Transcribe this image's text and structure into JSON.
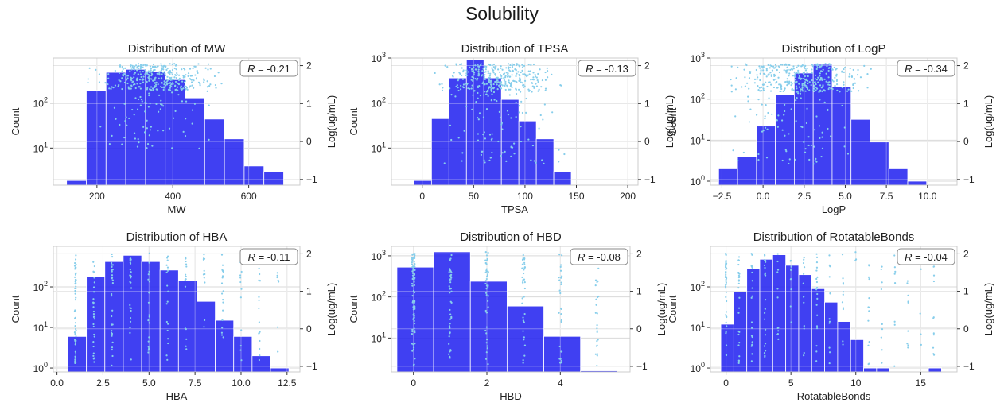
{
  "figure": {
    "title": "Solubility"
  },
  "colors": {
    "bar": "#2525f0",
    "scatter": "#87ceeb",
    "grid": "#d9d9d9",
    "frame": "#cccccc"
  },
  "chart_data": [
    {
      "type": "bar",
      "title": "Distribution of MW",
      "xlabel": "MW",
      "ylabel": "Count",
      "y2label": "Log(ug/mL)",
      "annotation": "R = -0.21",
      "xlim": [
        85,
        735
      ],
      "xticks": [
        200,
        400,
        600
      ],
      "xticklabels": [
        "200",
        "400",
        "600"
      ],
      "ylog": true,
      "ylim": [
        1.5,
        1000
      ],
      "yticks": [
        10,
        100
      ],
      "yticklabels": [
        "10^1",
        "10^2"
      ],
      "y2lim": [
        -1.15,
        2.2
      ],
      "y2ticks": [
        -1,
        0,
        1,
        2
      ],
      "y2ticklabels": [
        "−1",
        "0",
        "1",
        "2"
      ],
      "bins": [
        120,
        172,
        224,
        276,
        328,
        380,
        432,
        484,
        536,
        588,
        640,
        692
      ],
      "counts": [
        1.9,
        190,
        480,
        560,
        500,
        330,
        130,
        44,
        16,
        4,
        3
      ],
      "scatter_y": [
        1.35,
        2.05
      ],
      "scatter_x": [
        180,
        680
      ],
      "scatter_y_low": -0.2
    },
    {
      "type": "bar",
      "title": "Distribution of TPSA",
      "xlabel": "TPSA",
      "ylabel": "Count",
      "y2label": "Log(ug/mL)",
      "annotation": "R = -0.13",
      "xlim": [
        -30,
        210
      ],
      "xticks": [
        0,
        50,
        100,
        150,
        200
      ],
      "xticklabels": [
        "0",
        "50",
        "100",
        "150",
        "200"
      ],
      "ylog": true,
      "ylim": [
        1.5,
        1000
      ],
      "yticks": [
        10,
        100,
        1000
      ],
      "yticklabels": [
        "10^1",
        "10^2",
        "10^3"
      ],
      "y2lim": [
        -1.15,
        2.2
      ],
      "y2ticks": [
        -1,
        0,
        1,
        2
      ],
      "y2ticklabels": [
        "−1",
        "0",
        "1",
        "2"
      ],
      "bins": [
        -8,
        9,
        26,
        43,
        60,
        77,
        94,
        111,
        128,
        145,
        162,
        179
      ],
      "counts": [
        1.9,
        45,
        360,
        900,
        360,
        120,
        40,
        16,
        3,
        0,
        0
      ],
      "scatter_y": [
        1.3,
        2.05
      ],
      "scatter_x": [
        10,
        190
      ],
      "scatter_y_low": -0.6
    },
    {
      "type": "bar",
      "title": "Distribution of LogP",
      "xlabel": "LogP",
      "ylabel": "Count",
      "y2label": "Log(ug/mL)",
      "annotation": "R = -0.34",
      "xlim": [
        -3.2,
        11.8
      ],
      "xticks": [
        -2.5,
        0,
        2.5,
        5,
        7.5,
        10
      ],
      "xticklabels": [
        "−2.5",
        "0.0",
        "2.5",
        "5.0",
        "7.5",
        "10.0"
      ],
      "ylog": true,
      "ylim": [
        0.8,
        1000
      ],
      "yticks": [
        1,
        10,
        100,
        1000
      ],
      "yticklabels": [
        "10^0",
        "10^1",
        "10^2",
        "10^3"
      ],
      "y2lim": [
        -1.15,
        2.2
      ],
      "y2ticks": [
        -1,
        0,
        1,
        2
      ],
      "y2ticklabels": [
        "−1",
        "0",
        "1",
        "2"
      ],
      "bins": [
        -2.7,
        -1.55,
        -0.4,
        0.75,
        1.9,
        3.05,
        4.2,
        5.35,
        6.5,
        7.65,
        8.8,
        9.95
      ],
      "counts": [
        2,
        4,
        22,
        130,
        430,
        700,
        200,
        32,
        9,
        2,
        1
      ],
      "scatter_y": [
        1.3,
        2.05
      ],
      "scatter_x": [
        -2.3,
        10.5
      ],
      "scatter_y_low": -0.6
    },
    {
      "type": "bar",
      "title": "Distribution of HBA",
      "xlabel": "HBA",
      "ylabel": "Count",
      "y2label": "Log(ug/mL)",
      "annotation": "R = -0.11",
      "xlim": [
        -0.2,
        13.2
      ],
      "xticks": [
        0,
        2.5,
        5,
        7.5,
        10,
        12.5
      ],
      "xticklabels": [
        "0.0",
        "2.5",
        "5.0",
        "7.5",
        "10.0",
        "12.5"
      ],
      "ylog": true,
      "ylim": [
        0.8,
        1000
      ],
      "yticks": [
        1,
        10,
        100
      ],
      "yticklabels": [
        "10^0",
        "10^1",
        "10^2"
      ],
      "y2lim": [
        -1.15,
        2.2
      ],
      "y2ticks": [
        -1,
        0,
        1,
        2
      ],
      "y2ticklabels": [
        "−1",
        "0",
        "1",
        "2"
      ],
      "bins": [
        0.6,
        1.6,
        2.6,
        3.6,
        4.6,
        5.6,
        6.6,
        7.6,
        8.6,
        9.6,
        10.6,
        11.6,
        12.6
      ],
      "counts": [
        6,
        180,
        420,
        600,
        420,
        260,
        140,
        44,
        15,
        6,
        2,
        1
      ],
      "scatter_y": [
        -1.0,
        2.05
      ],
      "scatter_x": [
        1,
        12
      ],
      "discrete": true
    },
    {
      "type": "bar",
      "title": "Distribution of HBD",
      "xlabel": "HBD",
      "ylabel": "Count",
      "y2label": "Log(ug/mL)",
      "annotation": "R = -0.08",
      "xlim": [
        -0.6,
        5.9
      ],
      "xticks": [
        0,
        2,
        4
      ],
      "xticklabels": [
        "0",
        "2",
        "4"
      ],
      "ylog": true,
      "ylim": [
        1.5,
        1700
      ],
      "yticks": [
        10,
        100,
        1000
      ],
      "yticklabels": [
        "10^1",
        "10^2",
        "10^3"
      ],
      "y2lim": [
        -1.15,
        2.2
      ],
      "y2ticks": [
        -1,
        0,
        1,
        2
      ],
      "y2ticklabels": [
        "−1",
        "0",
        "1",
        "2"
      ],
      "bins": [
        -0.45,
        0.55,
        1.55,
        2.55,
        3.55,
        4.55,
        5.55
      ],
      "counts": [
        530,
        1250,
        240,
        60,
        11,
        1.6
      ],
      "scatter_y": [
        -1.0,
        2.05
      ],
      "scatter_x": [
        0,
        5
      ],
      "discrete": true
    },
    {
      "type": "bar",
      "title": "Distribution of RotatableBonds",
      "xlabel": "RotatableBonds",
      "ylabel": "Count",
      "y2label": "Log(ug/mL)",
      "annotation": "R = -0.04",
      "xlim": [
        -1.2,
        17.8
      ],
      "xticks": [
        0,
        5,
        10,
        15
      ],
      "xticklabels": [
        "0",
        "5",
        "10",
        "15"
      ],
      "ylog": true,
      "ylim": [
        0.8,
        1000
      ],
      "yticks": [
        1,
        10,
        100
      ],
      "yticklabels": [
        "10^0",
        "10^1",
        "10^2"
      ],
      "y2lim": [
        -1.15,
        2.2
      ],
      "y2ticks": [
        -1,
        0,
        1,
        2
      ],
      "y2ticklabels": [
        "−1",
        "0",
        "1",
        "2"
      ],
      "bins": [
        -0.4,
        0.6,
        1.6,
        2.6,
        3.6,
        4.6,
        5.6,
        6.6,
        7.6,
        8.6,
        9.6,
        10.6,
        11.6,
        12.6,
        13.6,
        14.6,
        15.6,
        16.6
      ],
      "counts": [
        12,
        75,
        280,
        480,
        620,
        340,
        200,
        90,
        42,
        14,
        5,
        1,
        1,
        0,
        0,
        0,
        1
      ],
      "scatter_y": [
        -1.0,
        2.05
      ],
      "scatter_x": [
        0,
        16
      ],
      "discrete": true
    }
  ]
}
